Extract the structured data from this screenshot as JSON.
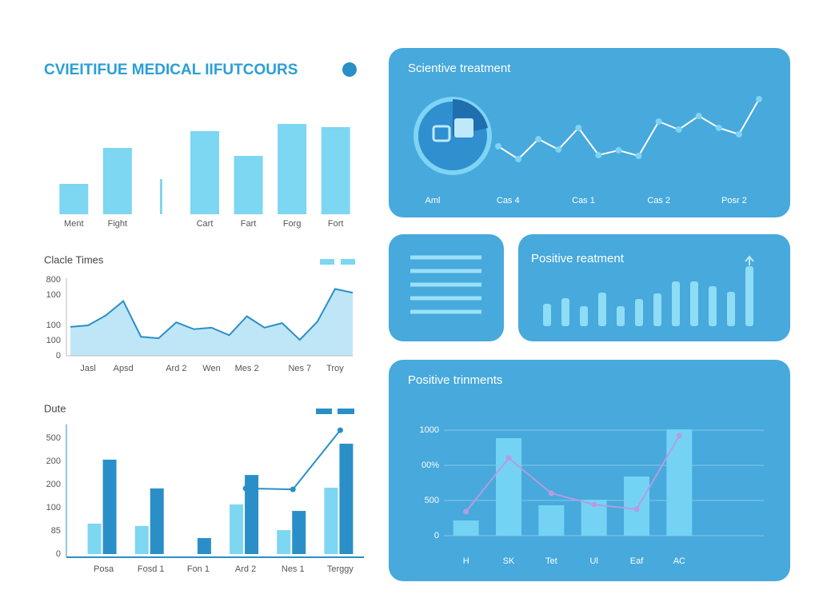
{
  "chart_data": [
    {
      "type": "bar",
      "title": "CVIEITIFUE MEDICAL IIFUTCOURS",
      "categories": [
        "Ment",
        "Fight",
        null,
        "Cart",
        "Fart",
        "Forg",
        "Fort"
      ],
      "values": [
        38,
        83,
        44,
        104,
        73,
        113,
        109
      ],
      "color": "#7dd6f2"
    },
    {
      "type": "area",
      "title": "Clacle Times",
      "categories": [
        null,
        "Jasl",
        null,
        "Apsd",
        null,
        null,
        "Ard 2",
        null,
        "Wen",
        null,
        "Mes 2",
        null,
        null,
        "Nes 7",
        null,
        "Troy",
        null
      ],
      "values": [
        190,
        200,
        265,
        360,
        125,
        115,
        220,
        175,
        185,
        135,
        260,
        185,
        215,
        105,
        225,
        440,
        415
      ],
      "color": "#2a8fc7",
      "fill": "#bfe6f7",
      "ylim": [
        0,
        500
      ],
      "yticks": [
        {
          "value": 500,
          "label": "800"
        },
        {
          "value": 400,
          "label": "100"
        },
        {
          "value": 200,
          "label": "100"
        },
        {
          "value": 100,
          "label": "100"
        },
        0
      ]
    },
    {
      "type": "bar_line",
      "title": "Dute",
      "categories": [
        "Posa",
        "Fosd 1",
        "Fon 1",
        "Ard 2",
        "Nes 1",
        "Terggy"
      ],
      "series": [
        {
          "type": "bar",
          "color": "#7dd6f2",
          "values": [
            131,
            121,
            null,
            214,
            103,
            286
          ]
        },
        {
          "type": "bar",
          "color": "#2a8fc7",
          "values": [
            407,
            283,
            69,
            341,
            186,
            476
          ]
        },
        {
          "type": "line",
          "color": "#2a8fc7",
          "values": [
            null,
            null,
            null,
            283,
            279,
            534
          ]
        }
      ],
      "ylim": [
        0,
        560
      ],
      "yticks": [
        500,
        {
          "value": 400,
          "label": "200"
        },
        {
          "value": 300,
          "label": "200"
        },
        {
          "value": 200,
          "label": "100"
        },
        {
          "value": 100,
          "label": "85"
        },
        0
      ]
    },
    {
      "type": "line",
      "title": "Scientive treatment",
      "x_labels": [
        "Aml",
        "Cas 4",
        "Cas 1",
        "Cas 2",
        "Posr 2"
      ],
      "values": [
        47,
        31,
        56,
        43,
        70,
        36,
        42,
        35,
        78,
        68,
        85,
        70,
        62,
        106
      ],
      "color": "#ffffff"
    },
    {
      "type": "bar",
      "title": "Positive reatment",
      "values": [
        28,
        35,
        25,
        42,
        25,
        34,
        41,
        56,
        56,
        50,
        43,
        75
      ],
      "color": "#8fdcf5"
    },
    {
      "type": "bar_line",
      "title": "Positive trinments",
      "categories": [
        "H",
        "SK",
        "Tet",
        "Ul",
        "Eaf",
        "AC"
      ],
      "series": [
        {
          "type": "bar",
          "color": "#74d3f3",
          "values": [
            216,
            1386,
            432,
            511,
            841,
            1511
          ]
        },
        {
          "type": "line",
          "color": "#b69be3",
          "values": [
            341,
            1102,
            602,
            443,
            375,
            1420
          ]
        }
      ],
      "ylim": [
        0,
        1600
      ],
      "yticks": [
        {
          "value": 1500,
          "label": "1000"
        },
        {
          "value": 1000,
          "label": "00%"
        },
        500,
        0
      ],
      "grid": true
    }
  ]
}
